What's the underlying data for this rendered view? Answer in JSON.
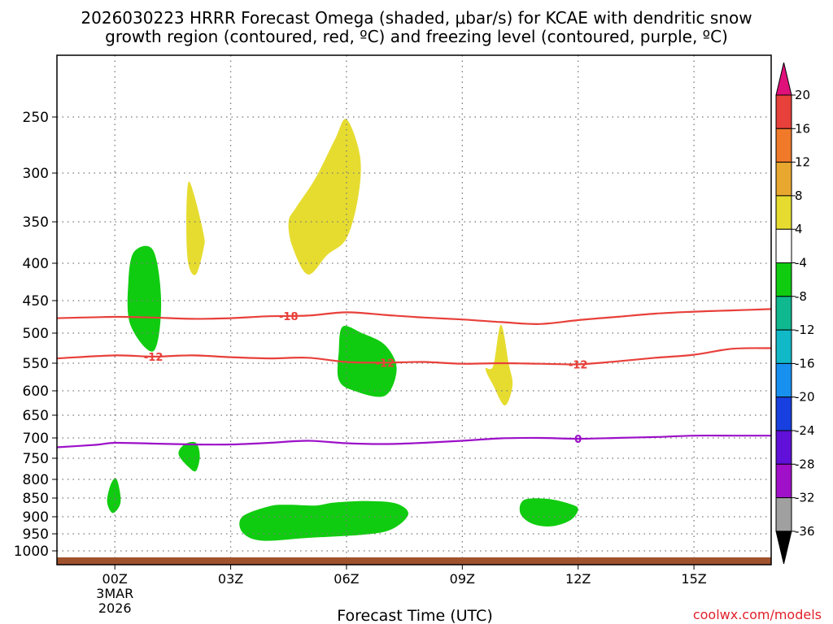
{
  "chart_data": {
    "type": "contour",
    "title_line1": "2026030223 HRRR Forecast Omega (shaded, μbar/s) for KCAE with dendritic snow",
    "title_line2": "growth region (contoured, red, ºC) and freezing level (contoured, purple, ºC)",
    "xlabel": "Forecast Time (UTC)",
    "credit": "coolwx.com/models",
    "x_range_hours": [
      -1.5,
      17
    ],
    "x_ticks": [
      {
        "hour": 0,
        "label": "00Z",
        "sub1": "3MAR",
        "sub2": "2026"
      },
      {
        "hour": 3,
        "label": "03Z"
      },
      {
        "hour": 6,
        "label": "06Z"
      },
      {
        "hour": 9,
        "label": "09Z"
      },
      {
        "hour": 12,
        "label": "12Z"
      },
      {
        "hour": 15,
        "label": "15Z"
      }
    ],
    "y_range_hpa": [
      200,
      1020
    ],
    "y_ticks": [
      "250",
      "300",
      "350",
      "400",
      "450",
      "500",
      "550",
      "600",
      "650",
      "700",
      "750",
      "800",
      "850",
      "900",
      "950",
      "1000"
    ],
    "colorbar": {
      "labels": [
        "20",
        "16",
        "12",
        "8",
        "4",
        "-4",
        "-8",
        "-12",
        "-16",
        "-20",
        "-24",
        "-28",
        "-32",
        "-36"
      ],
      "colors": {
        "top_arrow": "#e0107a",
        "c20_16": "#e8403a",
        "c16_12": "#f07a2a",
        "c12_8": "#e8a830",
        "c8_4": "#e6dc30",
        "c4_m4": "#ffffff",
        "cm4_m8": "#10cc10",
        "cm8_m12": "#10b890",
        "cm12_m16": "#10b8c8",
        "cm16_m20": "#1890f0",
        "cm20_m24": "#1840e0",
        "cm24_m28": "#6010d8",
        "cm28_m32": "#a010c8",
        "cm32_m36": "#a0a0a0",
        "bottom_arrow": "#000000"
      }
    },
    "contours": [
      {
        "name": "-18",
        "color": "#e8403a",
        "label_hours": [
          4.5
        ],
        "points": [
          [
            -1.5,
            477
          ],
          [
            0,
            475
          ],
          [
            1,
            476
          ],
          [
            2,
            478
          ],
          [
            3,
            477
          ],
          [
            4,
            474
          ],
          [
            5,
            473
          ],
          [
            6,
            468
          ],
          [
            7,
            472
          ],
          [
            8,
            476
          ],
          [
            9,
            479
          ],
          [
            10,
            483
          ],
          [
            11,
            486
          ],
          [
            12,
            480
          ],
          [
            13,
            475
          ],
          [
            14,
            470
          ],
          [
            15,
            467
          ],
          [
            16,
            465
          ],
          [
            17,
            463
          ]
        ]
      },
      {
        "name": "-12",
        "color": "#e8403a",
        "label_hours": [
          1.0,
          7.0,
          12.0
        ],
        "points": [
          [
            -1.5,
            542
          ],
          [
            0,
            537
          ],
          [
            1,
            539
          ],
          [
            2,
            537
          ],
          [
            3,
            540
          ],
          [
            4,
            542
          ],
          [
            5,
            541
          ],
          [
            6,
            548
          ],
          [
            7,
            549
          ],
          [
            8,
            548
          ],
          [
            9,
            551
          ],
          [
            10,
            550
          ],
          [
            11,
            551
          ],
          [
            12,
            552
          ],
          [
            13,
            547
          ],
          [
            14,
            541
          ],
          [
            15,
            536
          ],
          [
            16,
            526
          ],
          [
            17,
            525
          ]
        ]
      },
      {
        "name": "0",
        "color": "#9c10c8",
        "label_hours": [
          12.0
        ],
        "points": [
          [
            -1.5,
            723
          ],
          [
            -0.5,
            717
          ],
          [
            0,
            712
          ],
          [
            1,
            714
          ],
          [
            2,
            716
          ],
          [
            3,
            716
          ],
          [
            4,
            712
          ],
          [
            5,
            707
          ],
          [
            6,
            713
          ],
          [
            7,
            715
          ],
          [
            8,
            712
          ],
          [
            9,
            707
          ],
          [
            10,
            701
          ],
          [
            11,
            700
          ],
          [
            12,
            702
          ],
          [
            13,
            700
          ],
          [
            14,
            698
          ],
          [
            15,
            695
          ],
          [
            16,
            695
          ],
          [
            17,
            695
          ]
        ]
      }
    ],
    "omega_regions": [
      {
        "name": "green-upper-left",
        "value_range": "-4 to -8",
        "color": "#10cc10",
        "points": [
          [
            0.5,
            386
          ],
          [
            1.0,
            385
          ],
          [
            1.2,
            455
          ],
          [
            1.0,
            530
          ],
          [
            0.4,
            487
          ],
          [
            0.35,
            425
          ]
        ]
      },
      {
        "name": "green-mid",
        "value_range": "-4 to -8",
        "color": "#10cc10",
        "points": [
          [
            5.9,
            490
          ],
          [
            6.4,
            500
          ],
          [
            7.0,
            520
          ],
          [
            7.3,
            560
          ],
          [
            7.0,
            610
          ],
          [
            6.2,
            600
          ],
          [
            5.8,
            580
          ],
          [
            5.8,
            530
          ]
        ]
      },
      {
        "name": "green-small-750",
        "value_range": "-4 to -8",
        "color": "#10cc10",
        "points": [
          [
            1.8,
            716
          ],
          [
            2.1,
            712
          ],
          [
            2.2,
            745
          ],
          [
            2.1,
            780
          ],
          [
            1.9,
            770
          ],
          [
            1.65,
            740
          ]
        ]
      },
      {
        "name": "green-small-850",
        "value_range": "-4 to -8",
        "color": "#10cc10",
        "points": [
          [
            -0.1,
            812
          ],
          [
            0.05,
            800
          ],
          [
            0.15,
            860
          ],
          [
            -0.05,
            890
          ],
          [
            -0.2,
            860
          ]
        ]
      },
      {
        "name": "green-lower-large",
        "value_range": "-4 to -8",
        "color": "#10cc10",
        "points": [
          [
            3.3,
            900
          ],
          [
            4.0,
            872
          ],
          [
            4.5,
            868
          ],
          [
            5.2,
            870
          ],
          [
            5.7,
            862
          ],
          [
            6.6,
            858
          ],
          [
            7.3,
            865
          ],
          [
            7.6,
            893
          ],
          [
            7.2,
            935
          ],
          [
            6.5,
            952
          ],
          [
            5.0,
            962
          ],
          [
            3.8,
            970
          ],
          [
            3.3,
            945
          ]
        ]
      },
      {
        "name": "green-lower-right",
        "value_range": "-4 to -8",
        "color": "#10cc10",
        "points": [
          [
            10.6,
            855
          ],
          [
            11.2,
            852
          ],
          [
            11.8,
            866
          ],
          [
            12.0,
            880
          ],
          [
            11.8,
            910
          ],
          [
            11.3,
            928
          ],
          [
            10.8,
            920
          ],
          [
            10.5,
            890
          ]
        ]
      },
      {
        "name": "yellow-upper-left",
        "value_range": "4 to 8",
        "color": "#e6dc30",
        "points": [
          [
            1.9,
            310
          ],
          [
            2.05,
            322
          ],
          [
            2.3,
            365
          ],
          [
            2.3,
            382
          ],
          [
            2.1,
            415
          ],
          [
            1.9,
            400
          ],
          [
            1.85,
            350
          ]
        ]
      },
      {
        "name": "yellow-upper-big",
        "value_range": "4 to 8",
        "color": "#e6dc30",
        "points": [
          [
            4.7,
            335
          ],
          [
            5.2,
            305
          ],
          [
            5.7,
            270
          ],
          [
            6.0,
            252
          ],
          [
            6.35,
            285
          ],
          [
            6.3,
            325
          ],
          [
            6.0,
            370
          ],
          [
            5.5,
            390
          ],
          [
            5.0,
            415
          ],
          [
            4.6,
            380
          ],
          [
            4.5,
            350
          ]
        ]
      },
      {
        "name": "yellow-mid-right",
        "value_range": "4 to 8",
        "color": "#e6dc30",
        "points": [
          [
            9.8,
            555
          ],
          [
            10.0,
            487
          ],
          [
            10.2,
            550
          ],
          [
            10.3,
            590
          ],
          [
            10.1,
            630
          ],
          [
            9.8,
            590
          ],
          [
            9.6,
            560
          ]
        ]
      }
    ]
  }
}
